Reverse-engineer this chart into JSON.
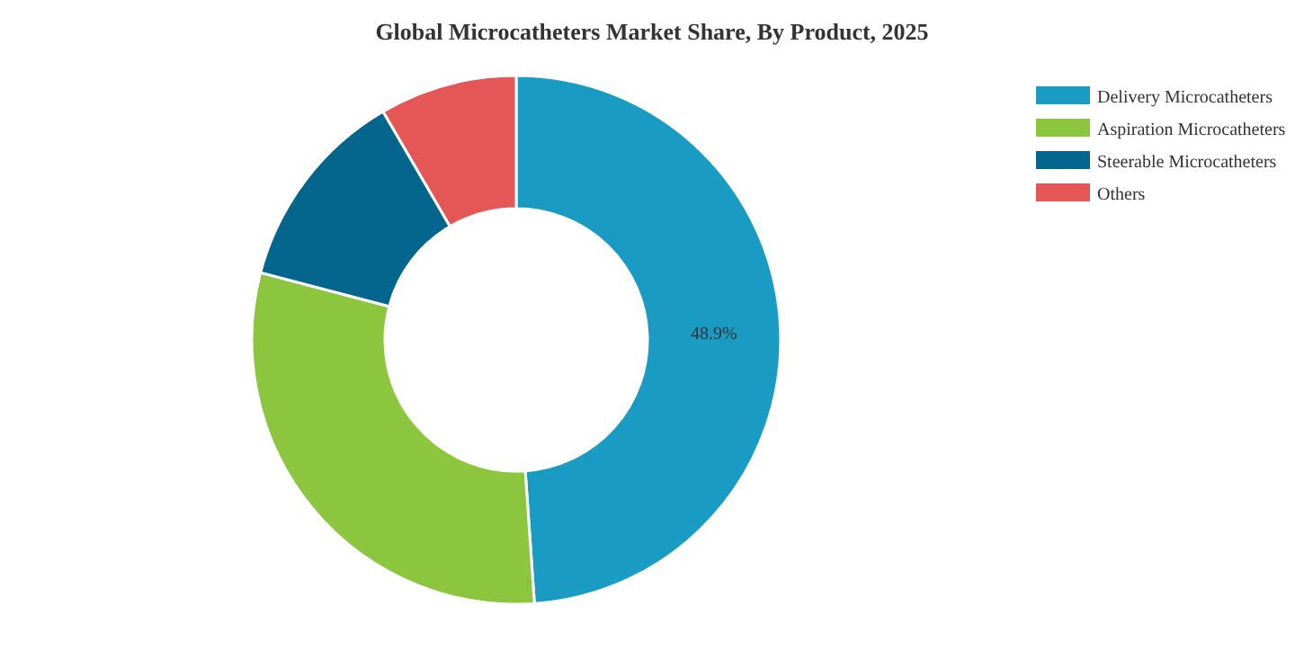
{
  "chart_data": {
    "type": "donut",
    "title": "Global Microcatheters Market Share, By Product, 2025",
    "categories": [
      "Delivery Microcatheters",
      "Aspiration Microcatheters",
      "Steerable Microcatheters",
      "Others"
    ],
    "values": [
      48.9,
      30.2,
      12.5,
      8.4
    ],
    "colors": [
      "#1a9bc3",
      "#8cc63f",
      "#05668d",
      "#e45756"
    ],
    "value_labels": [
      "48.9%",
      null,
      null,
      null
    ],
    "legend": "top right"
  }
}
